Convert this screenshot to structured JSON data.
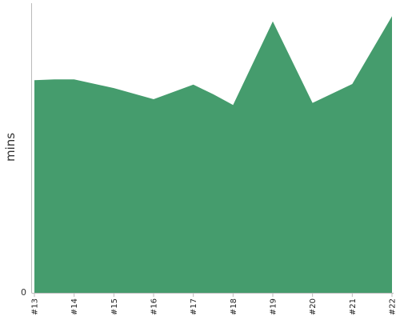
{
  "chart_data": {
    "type": "area",
    "title": "",
    "xlabel": "",
    "ylabel": "mins",
    "categories": [
      "#13",
      "#14",
      "#15",
      "#16",
      "#17",
      "#18",
      "#19",
      "#20",
      "#21",
      "#22"
    ],
    "x": [
      13,
      13.5,
      14,
      15,
      16,
      17,
      17.5,
      18,
      19,
      20,
      21,
      22
    ],
    "series": [
      {
        "values": [
          73,
          73.3,
          73.3,
          70.3,
          66.5,
          71.5,
          68.2,
          64.5,
          93.2,
          65.2,
          71.7,
          95
        ]
      }
    ],
    "ylim": [
      0,
      100
    ],
    "y_ticks": [
      0
    ],
    "grid": false,
    "colors": {
      "fill": "#459c6d",
      "axis": "#bbbbbb"
    }
  }
}
